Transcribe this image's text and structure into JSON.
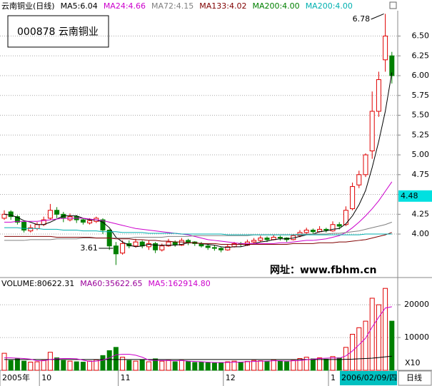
{
  "chart_data": {
    "type": "candlestick",
    "title": "云南铜业(日线)",
    "code_box": "000878 云南铜业",
    "ylim": [
      3.46,
      6.82
    ],
    "yticks": [
      {
        "value": 4,
        "label": "4.00"
      },
      {
        "value": 4.25,
        "label": "4.25"
      },
      {
        "value": 4.5,
        "label": "4.50"
      },
      {
        "value": 4.75,
        "label": "4.75"
      },
      {
        "value": 5,
        "label": "5.00"
      },
      {
        "value": 5.25,
        "label": "5.25"
      },
      {
        "value": 5.5,
        "label": "5.50"
      },
      {
        "value": 5.75,
        "label": "5.75"
      },
      {
        "value": 6,
        "label": "6.00"
      },
      {
        "value": 6.25,
        "label": "6.25"
      },
      {
        "value": 6.5,
        "label": "6.50"
      }
    ],
    "grid": true,
    "up_color": "#e00000",
    "down_color": "#008000",
    "cursor_price": 4.48,
    "high_label": 6.78,
    "low_label": 3.61,
    "watermark": "网址：www.fbhm.cn",
    "ohlc": [
      [
        4.2,
        4.3,
        4.18,
        4.25
      ],
      [
        4.28,
        4.3,
        4.18,
        4.22
      ],
      [
        4.22,
        4.24,
        4.12,
        4.15
      ],
      [
        4.15,
        4.16,
        4.02,
        4.05
      ],
      [
        4.04,
        4.12,
        4.02,
        4.08
      ],
      [
        4.07,
        4.15,
        4.05,
        4.12
      ],
      [
        4.12,
        4.22,
        4.1,
        4.18
      ],
      [
        4.2,
        4.38,
        4.18,
        4.3
      ],
      [
        4.3,
        4.34,
        4.2,
        4.25
      ],
      [
        4.25,
        4.28,
        4.15,
        4.2
      ],
      [
        4.18,
        4.26,
        4.16,
        4.22
      ],
      [
        4.22,
        4.24,
        4.14,
        4.18
      ],
      [
        4.18,
        4.2,
        4.12,
        4.15
      ],
      [
        4.14,
        4.2,
        4.12,
        4.17
      ],
      [
        4.16,
        4.22,
        4.14,
        4.2
      ],
      [
        4.18,
        4.2,
        4.0,
        4.05
      ],
      [
        4.05,
        4.06,
        3.8,
        3.85
      ],
      [
        3.85,
        3.9,
        3.61,
        3.75
      ],
      [
        3.76,
        3.92,
        3.74,
        3.88
      ],
      [
        3.88,
        3.92,
        3.82,
        3.85
      ],
      [
        3.85,
        3.94,
        3.83,
        3.9
      ],
      [
        3.9,
        3.92,
        3.82,
        3.85
      ],
      [
        3.84,
        3.92,
        3.8,
        3.88
      ],
      [
        3.88,
        3.9,
        3.76,
        3.8
      ],
      [
        3.8,
        3.88,
        3.78,
        3.85
      ],
      [
        3.85,
        3.94,
        3.84,
        3.9
      ],
      [
        3.9,
        3.92,
        3.84,
        3.87
      ],
      [
        3.86,
        3.95,
        3.85,
        3.92
      ],
      [
        3.92,
        3.94,
        3.86,
        3.9
      ],
      [
        3.9,
        3.91,
        3.85,
        3.88
      ],
      [
        3.88,
        3.9,
        3.83,
        3.85
      ],
      [
        3.85,
        3.87,
        3.8,
        3.83
      ],
      [
        3.83,
        3.86,
        3.79,
        3.82
      ],
      [
        3.82,
        3.84,
        3.77,
        3.8
      ],
      [
        3.8,
        3.87,
        3.79,
        3.84
      ],
      [
        3.84,
        3.9,
        3.83,
        3.88
      ],
      [
        3.88,
        3.9,
        3.84,
        3.87
      ],
      [
        3.86,
        3.93,
        3.85,
        3.9
      ],
      [
        3.9,
        3.95,
        3.88,
        3.92
      ],
      [
        3.92,
        3.98,
        3.9,
        3.95
      ],
      [
        3.95,
        3.97,
        3.9,
        3.93
      ],
      [
        3.93,
        3.99,
        3.92,
        3.96
      ],
      [
        3.96,
        3.98,
        3.92,
        3.95
      ],
      [
        3.95,
        3.96,
        3.9,
        3.93
      ],
      [
        3.93,
        4.0,
        3.92,
        3.98
      ],
      [
        3.98,
        4.05,
        3.96,
        4.02
      ],
      [
        4.02,
        4.08,
        4.0,
        4.05
      ],
      [
        4.05,
        4.07,
        4.0,
        4.03
      ],
      [
        4.03,
        4.1,
        4.02,
        4.06
      ],
      [
        4.06,
        4.08,
        4.02,
        4.05
      ],
      [
        4.04,
        4.16,
        4.03,
        4.12
      ],
      [
        4.12,
        4.15,
        4.06,
        4.1
      ],
      [
        4.12,
        4.35,
        4.1,
        4.3
      ],
      [
        4.32,
        4.65,
        4.3,
        4.6
      ],
      [
        4.62,
        4.8,
        4.58,
        4.75
      ],
      [
        4.75,
        5.02,
        4.72,
        5.0
      ],
      [
        5.05,
        5.8,
        4.95,
        5.55
      ],
      [
        5.55,
        6.05,
        5.48,
        5.95
      ],
      [
        6.2,
        6.78,
        6.05,
        6.5
      ],
      [
        6.25,
        6.3,
        5.9,
        6.0
      ]
    ],
    "series": [
      {
        "name": "MA5:6.04",
        "color": "#000000",
        "values": [
          4.25,
          4.24,
          4.21,
          4.17,
          4.15,
          4.12,
          4.12,
          4.15,
          4.19,
          4.23,
          4.23,
          4.23,
          4.2,
          4.18,
          4.18,
          4.15,
          4.08,
          3.96,
          3.9,
          3.86,
          3.84,
          3.85,
          3.87,
          3.86,
          3.86,
          3.86,
          3.86,
          3.87,
          3.89,
          3.89,
          3.88,
          3.87,
          3.86,
          3.84,
          3.83,
          3.84,
          3.84,
          3.86,
          3.88,
          3.9,
          3.91,
          3.93,
          3.94,
          3.94,
          3.95,
          3.97,
          3.99,
          4.0,
          4.03,
          4.04,
          4.06,
          4.07,
          4.13,
          4.23,
          4.37,
          4.55,
          4.84,
          5.17,
          5.55,
          6.04
        ]
      },
      {
        "name": "MA24:4.66",
        "color": "#cc00cc",
        "values": [
          4.15,
          4.15,
          4.16,
          4.16,
          4.16,
          4.16,
          4.17,
          4.18,
          4.19,
          4.2,
          4.2,
          4.2,
          4.2,
          4.19,
          4.18,
          4.17,
          4.15,
          4.13,
          4.11,
          4.09,
          4.07,
          4.06,
          4.05,
          4.04,
          4.03,
          4.02,
          4.01,
          4.0,
          3.99,
          3.97,
          3.95,
          3.93,
          3.92,
          3.91,
          3.9,
          3.89,
          3.88,
          3.88,
          3.88,
          3.88,
          3.88,
          3.88,
          3.89,
          3.89,
          3.9,
          3.91,
          3.92,
          3.92,
          3.93,
          3.94,
          3.96,
          3.98,
          4.02,
          4.08,
          4.15,
          4.23,
          4.32,
          4.42,
          4.54,
          4.66
        ]
      },
      {
        "name": "MA72:4.15",
        "color": "#808080",
        "values": [
          3.92,
          3.92,
          3.92,
          3.92,
          3.93,
          3.93,
          3.93,
          3.93,
          3.94,
          3.94,
          3.94,
          3.94,
          3.95,
          3.95,
          3.95,
          3.95,
          3.95,
          3.95,
          3.95,
          3.95,
          3.96,
          3.96,
          3.96,
          3.96,
          3.96,
          3.97,
          3.97,
          3.97,
          3.97,
          3.98,
          3.98,
          3.98,
          3.98,
          3.98,
          3.98,
          3.98,
          3.98,
          3.98,
          3.99,
          3.99,
          3.99,
          3.99,
          3.99,
          3.99,
          3.99,
          4.0,
          4.0,
          4.0,
          4.0,
          4.0,
          4.01,
          4.01,
          4.02,
          4.03,
          4.04,
          4.06,
          4.08,
          4.1,
          4.12,
          4.15
        ]
      },
      {
        "name": "MA133:4.02",
        "color": "#800000",
        "values": [
          3.97,
          3.97,
          3.97,
          3.97,
          3.97,
          3.97,
          3.97,
          3.97,
          3.96,
          3.96,
          3.96,
          3.96,
          3.96,
          3.96,
          3.95,
          3.95,
          3.95,
          3.94,
          3.94,
          3.94,
          3.93,
          3.93,
          3.92,
          3.92,
          3.91,
          3.91,
          3.9,
          3.9,
          3.89,
          3.89,
          3.88,
          3.88,
          3.88,
          3.87,
          3.87,
          3.87,
          3.87,
          3.87,
          3.87,
          3.87,
          3.87,
          3.87,
          3.87,
          3.87,
          3.88,
          3.88,
          3.88,
          3.88,
          3.89,
          3.89,
          3.89,
          3.9,
          3.9,
          3.91,
          3.92,
          3.93,
          3.95,
          3.97,
          3.99,
          4.02
        ]
      },
      {
        "name": "MA200:4.00",
        "color": "#00b0b0",
        "values": [
          4.08,
          4.08,
          4.08,
          4.07,
          4.07,
          4.07,
          4.06,
          4.06,
          4.06,
          4.05,
          4.05,
          4.05,
          4.04,
          4.04,
          4.04,
          4.03,
          4.03,
          4.03,
          4.02,
          4.02,
          4.02,
          4.02,
          4.01,
          4.01,
          4.01,
          4.01,
          4.01,
          4.0,
          4.0,
          4.0,
          4.0,
          4.0,
          4.0,
          4.0,
          3.99,
          3.99,
          3.99,
          3.99,
          3.99,
          3.99,
          3.99,
          3.99,
          3.99,
          3.99,
          3.99,
          3.99,
          3.99,
          3.99,
          3.99,
          3.99,
          3.99,
          3.99,
          3.99,
          3.99,
          3.99,
          4.0,
          4.0,
          4.0,
          4.0,
          4.0
        ]
      }
    ],
    "header_extra": [
      {
        "text": "MA200:4.00",
        "color": "#008000"
      }
    ],
    "volume": {
      "title": "VOLUME:80622.31",
      "ylim": [
        0,
        27000
      ],
      "yticks": [
        10000,
        20000
      ],
      "unit": "X10",
      "values": [
        5200,
        3000,
        3500,
        2800,
        2500,
        2600,
        3000,
        5500,
        3800,
        3000,
        2800,
        2600,
        2500,
        2800,
        3200,
        4500,
        6000,
        7000,
        4000,
        3000,
        2800,
        3200,
        2600,
        3500,
        2800,
        3000,
        2600,
        3000,
        2700,
        2400,
        2500,
        2300,
        2200,
        2400,
        2600,
        2800,
        2500,
        2700,
        3000,
        2900,
        2700,
        3200,
        2800,
        2600,
        3000,
        3600,
        4000,
        3500,
        3800,
        3400,
        4200,
        3800,
        7000,
        11000,
        13000,
        15000,
        22000,
        20000,
        25000,
        15000
      ],
      "series": [
        {
          "name": "MA60:35622.65",
          "color": "#000000",
          "values": [
            3300,
            3300,
            3300,
            3300,
            3300,
            3300,
            3300,
            3300,
            3300,
            3300,
            3300,
            3300,
            3300,
            3300,
            3300,
            3300,
            3300,
            3300,
            3300,
            3300,
            3300,
            3300,
            3300,
            3300,
            3300,
            3300,
            3300,
            3300,
            3300,
            3300,
            3300,
            3300,
            3300,
            3300,
            3300,
            3300,
            3300,
            3300,
            3300,
            3300,
            3300,
            3300,
            3300,
            3300,
            3300,
            3300,
            3300,
            3300,
            3300,
            3300,
            3300,
            3300,
            3350,
            3400,
            3500,
            3600,
            3700,
            3900,
            4100,
            4300
          ]
        },
        {
          "name": "MA5:162914.80",
          "color": "#cc00cc",
          "values": [
            3800,
            3800,
            3700,
            3600,
            3400,
            2900,
            2900,
            3300,
            3500,
            3600,
            3600,
            3500,
            3100,
            2700,
            2800,
            3100,
            3800,
            4700,
            4900,
            4900,
            4600,
            4000,
            3100,
            3000,
            3000,
            3000,
            2900,
            3000,
            2800,
            2700,
            2600,
            2500,
            2400,
            2400,
            2400,
            2500,
            2500,
            2600,
            2700,
            2800,
            2800,
            2900,
            2900,
            2800,
            2900,
            3000,
            3200,
            3400,
            3600,
            3700,
            3800,
            3700,
            4400,
            5900,
            7800,
            9800,
            13200,
            16200,
            19000,
            19400
          ]
        }
      ]
    },
    "date_labels": [
      {
        "text": "2005年",
        "at": 0
      },
      {
        "text": "10",
        "at": 6
      },
      {
        "text": "11",
        "at": 18
      },
      {
        "text": "12",
        "at": 34
      },
      {
        "text": "1",
        "at": 50
      }
    ],
    "cursor_date": "2006/02/09/四",
    "period": "日线"
  }
}
